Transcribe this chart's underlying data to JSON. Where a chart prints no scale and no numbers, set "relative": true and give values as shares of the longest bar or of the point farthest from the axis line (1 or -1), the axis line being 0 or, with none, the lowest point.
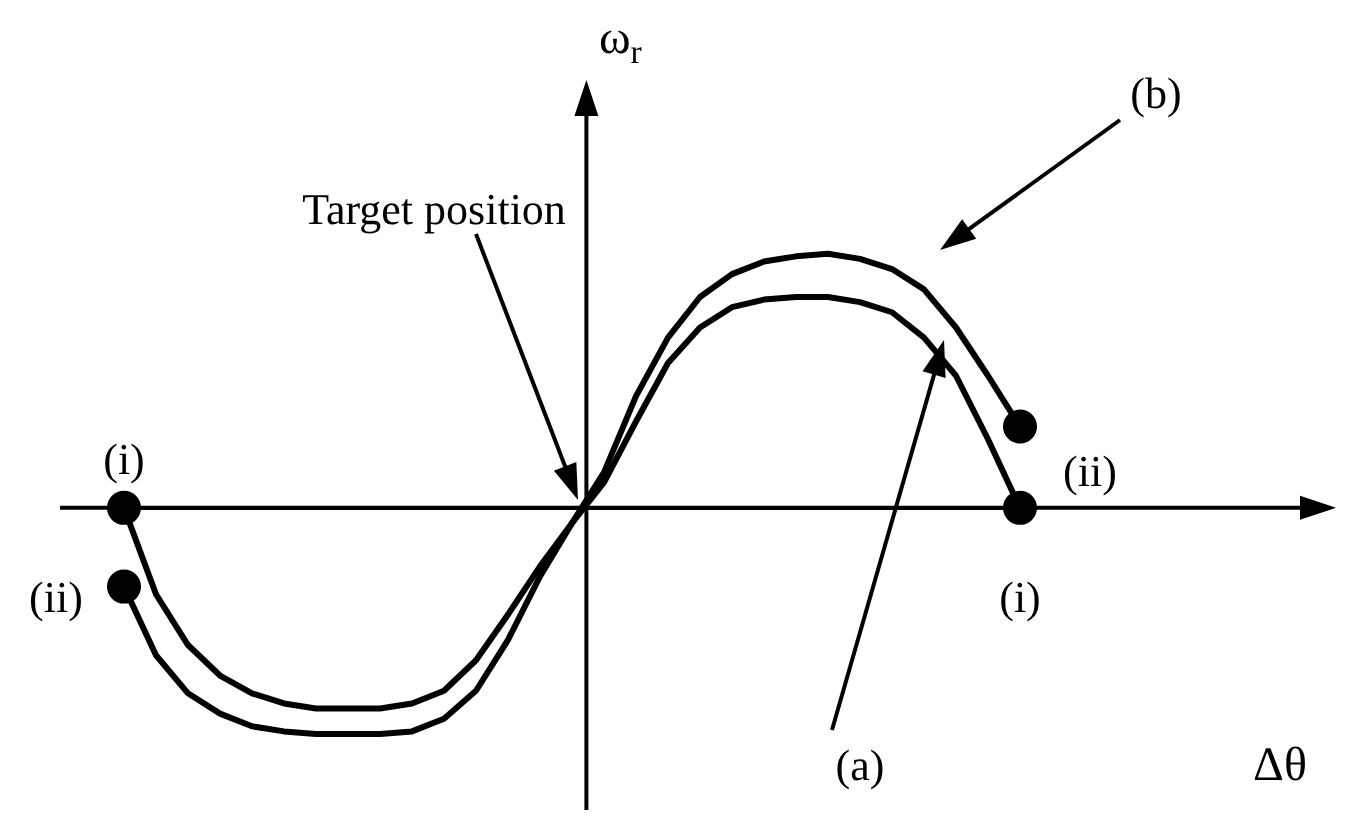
{
  "chart_data": {
    "type": "line",
    "relative": true,
    "xlabel": "Δθ",
    "ylabel": "ω$_{r}$",
    "marker": "none",
    "line_style": "solid",
    "legend": false,
    "grid": false,
    "categories": [
      null,
      null,
      null,
      null,
      null,
      null,
      null,
      null,
      null,
      null,
      null,
      null,
      null,
      null,
      null,
      null,
      null,
      null,
      null,
      null,
      null,
      null,
      null,
      null,
      null,
      null,
      null,
      null,
      null
    ],
    "series": [
      {
        "color": "#000000",
        "values": [
          0,
          -0.34,
          -0.54,
          -0.66,
          -0.73,
          -0.77,
          -0.79,
          -0.79,
          -0.79,
          -0.77,
          -0.72,
          -0.6,
          -0.42,
          -0.23,
          -0.06,
          0.1,
          0.34,
          0.57,
          0.71,
          0.79,
          0.82,
          0.83,
          0.83,
          0.81,
          0.77,
          0.67,
          0.52,
          0.27,
          0
        ]
      },
      {
        "color": "#000000",
        "values": [
          -0.31,
          -0.58,
          -0.73,
          -0.81,
          -0.86,
          -0.88,
          -0.89,
          -0.89,
          -0.89,
          -0.88,
          -0.83,
          -0.72,
          -0.52,
          -0.27,
          -0.06,
          0.14,
          0.44,
          0.67,
          0.83,
          0.92,
          0.97,
          0.99,
          1,
          0.98,
          0.94,
          0.86,
          0.71,
          0.52,
          0.32
        ]
      },
      {
        "marker": "circle",
        "color": "#000000",
        "values": [
          0,
          null,
          null,
          null,
          null,
          null,
          null,
          null,
          null,
          null,
          null,
          null,
          null,
          null,
          null,
          null,
          null,
          null,
          null,
          null,
          null,
          null,
          null,
          null,
          null,
          null,
          null,
          null,
          0
        ]
      },
      {
        "marker": "circle",
        "color": "#000000",
        "values": [
          -0.31,
          null,
          null,
          null,
          null,
          null,
          null,
          null,
          null,
          null,
          null,
          null,
          null,
          null,
          null,
          null,
          null,
          null,
          null,
          null,
          null,
          null,
          null,
          null,
          null,
          null,
          null,
          null,
          0.32
        ]
      }
    ],
    "annotations": [
      "Target position",
      "(b)",
      "(a)",
      "(i)",
      "(i)",
      "(ii)",
      "(ii)"
    ]
  }
}
